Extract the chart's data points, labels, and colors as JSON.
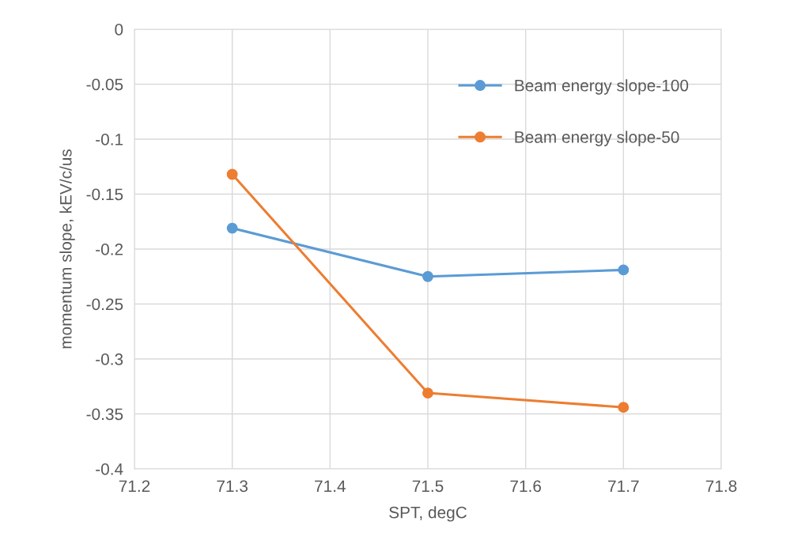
{
  "chart_data": {
    "type": "line",
    "xlabel": "SPT, degC",
    "ylabel": "momentum slope, kEV/c/us",
    "x": [
      71.3,
      71.5,
      71.7
    ],
    "series": [
      {
        "name": "Beam energy slope-100",
        "color": "#5b9bd5",
        "values": [
          -0.181,
          -0.225,
          -0.219
        ]
      },
      {
        "name": "Beam energy slope-50",
        "color": "#ed7d31",
        "values": [
          -0.132,
          -0.331,
          -0.344
        ]
      }
    ],
    "xlim": [
      71.2,
      71.8
    ],
    "xticks": [
      71.2,
      71.3,
      71.4,
      71.5,
      71.6,
      71.7,
      71.8
    ],
    "ylim": [
      -0.4,
      0
    ],
    "yticks": [
      -0.4,
      -0.35,
      -0.3,
      -0.25,
      -0.2,
      -0.15,
      -0.1,
      -0.05,
      0
    ],
    "grid": true,
    "legend": "top right",
    "marker": "circle",
    "line_style": "solid"
  }
}
